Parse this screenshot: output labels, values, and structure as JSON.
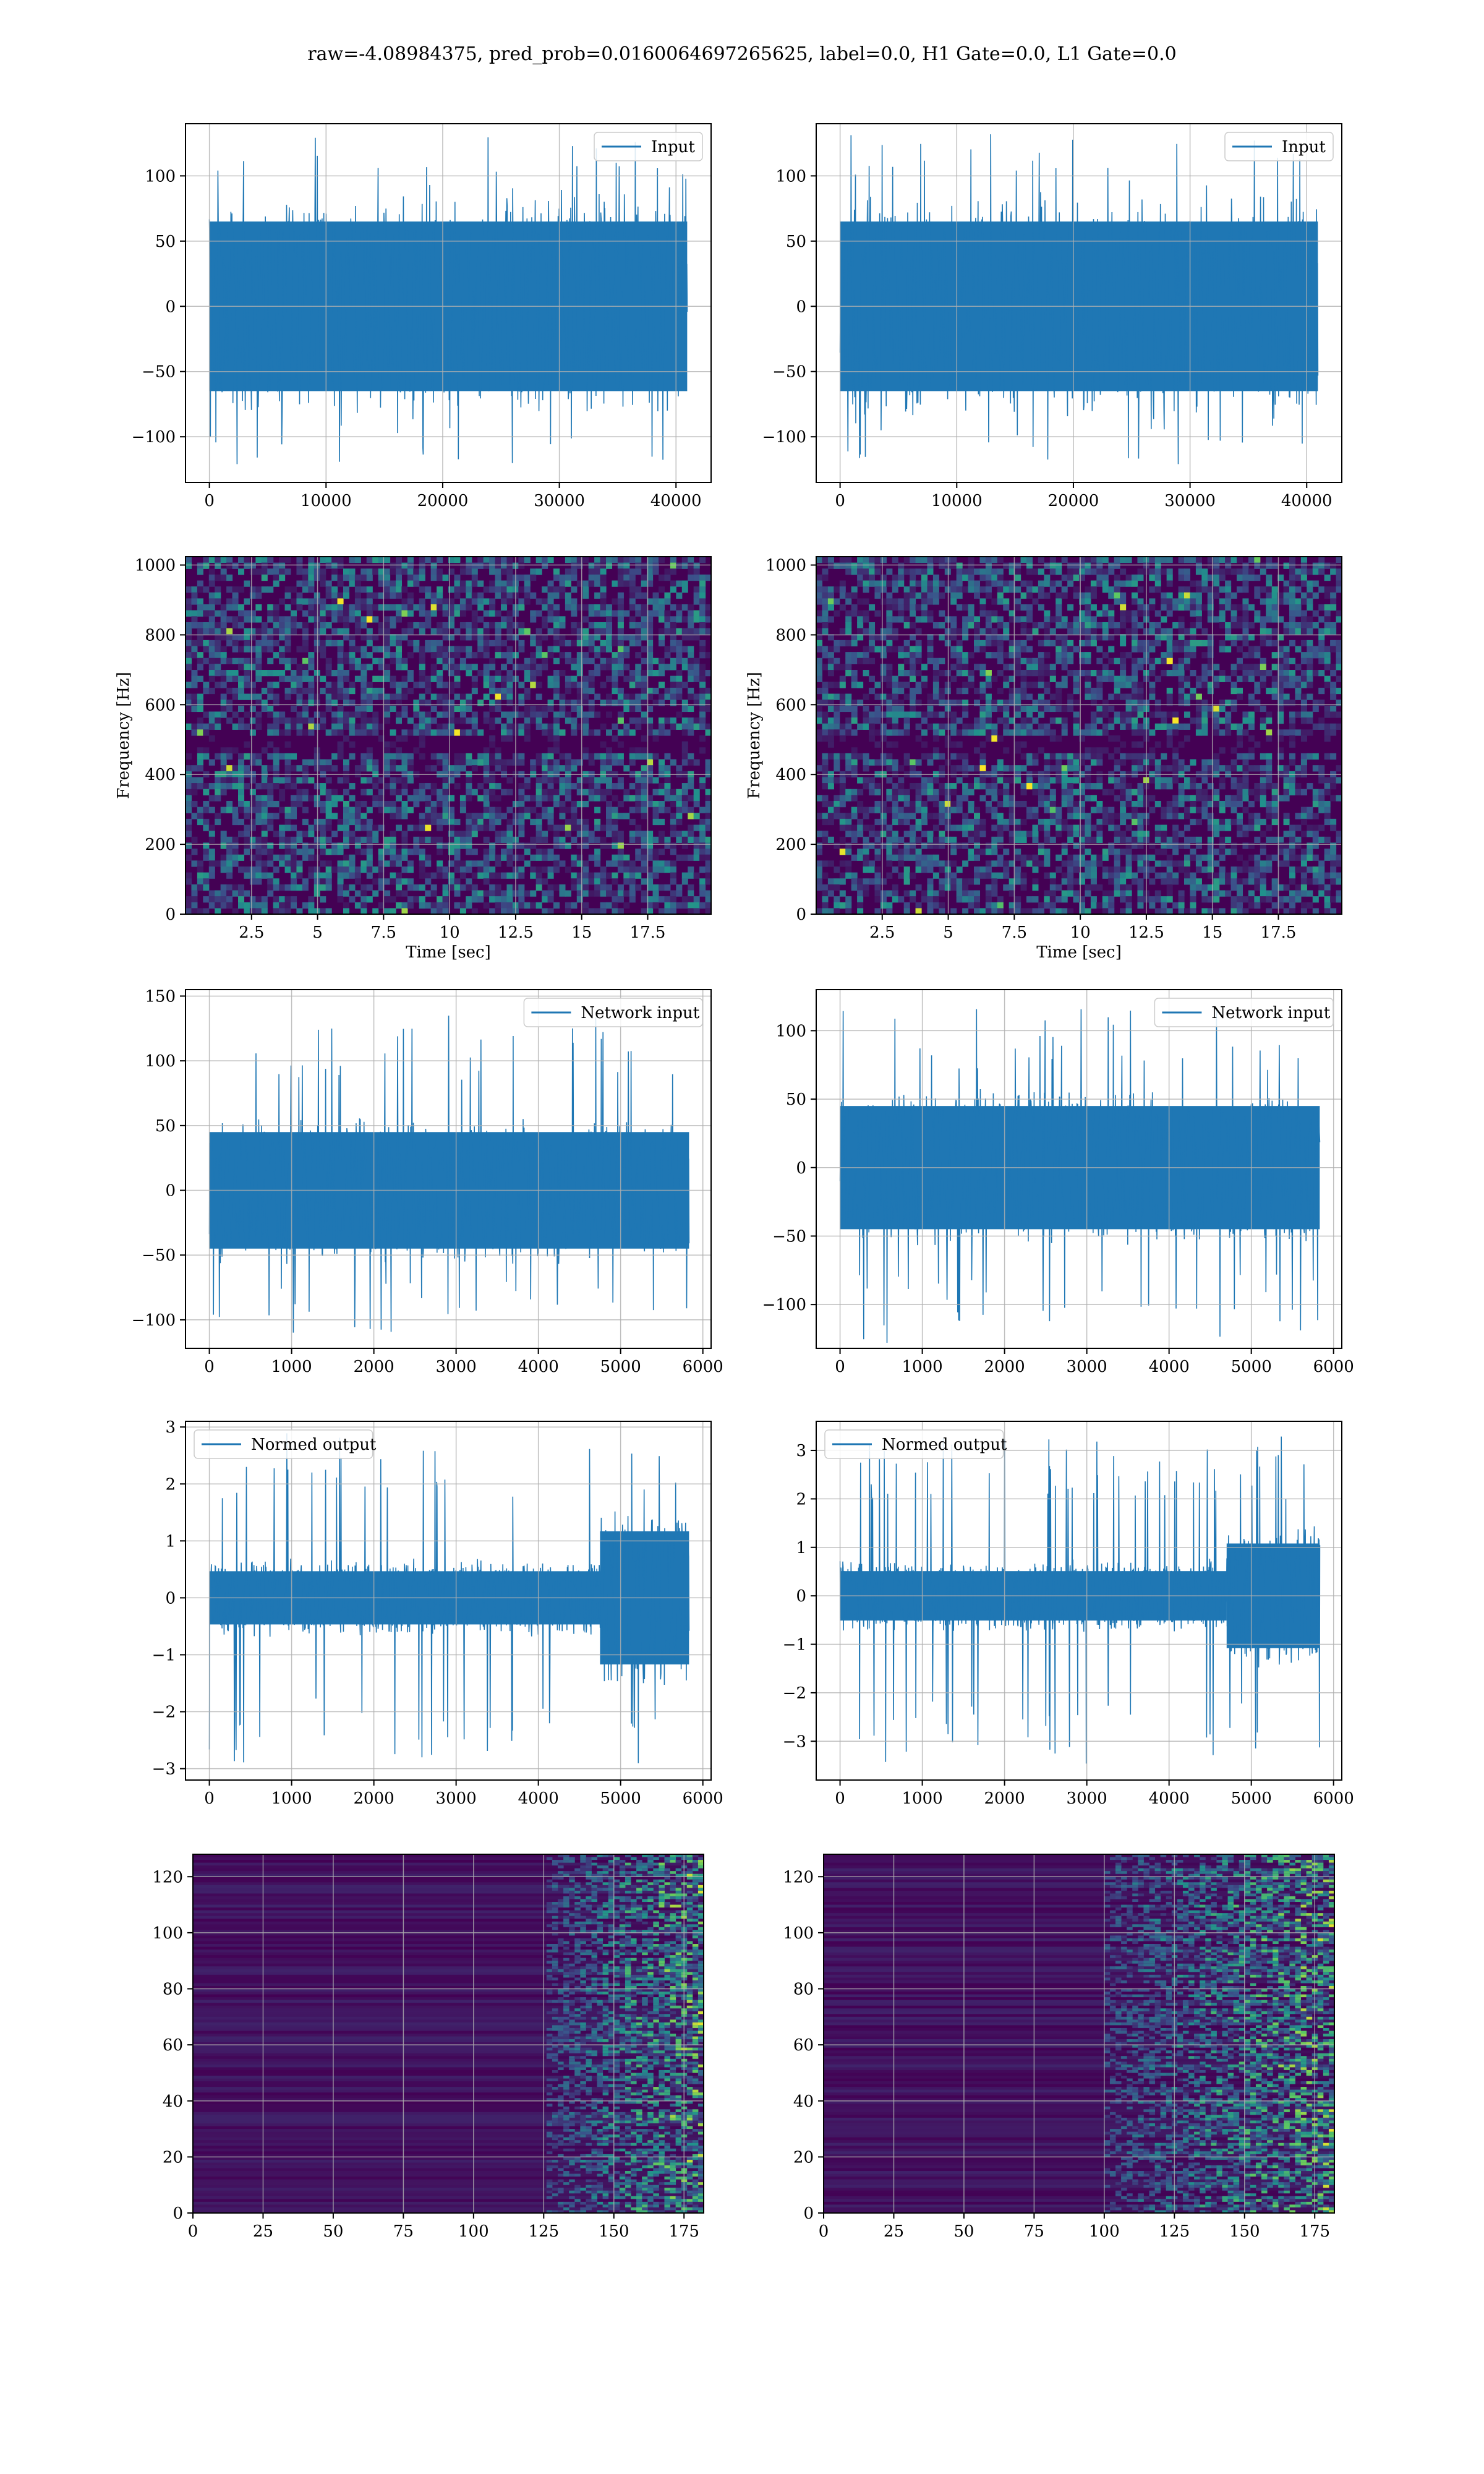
{
  "suptitle": "raw=-4.08984375, pred_prob=0.0160064697265625, label=0.0, H1 Gate=0.0, L1 Gate=0.0",
  "colors": {
    "line": "#1f77b4",
    "grid": "#b0b0b0",
    "viridis_low": "#440154",
    "viridis_high": "#fde725"
  },
  "chart_data": [
    {
      "type": "line",
      "row": 0,
      "col": 0,
      "legend": "Input",
      "legend_loc": "upper right",
      "xlim": [
        -2048,
        43008
      ],
      "ylim": [
        -135,
        140
      ],
      "xticks": [
        0,
        10000,
        20000,
        30000,
        40000
      ],
      "yticks": [
        -100,
        -50,
        0,
        50,
        100
      ],
      "n_samples": 40960,
      "envelope": {
        "core": 65,
        "peak_max": 130,
        "peak_min": -122
      },
      "grid": true
    },
    {
      "type": "line",
      "row": 0,
      "col": 1,
      "legend": "Input",
      "legend_loc": "upper right",
      "xlim": [
        -2048,
        43008
      ],
      "ylim": [
        -135,
        140
      ],
      "xticks": [
        0,
        10000,
        20000,
        30000,
        40000
      ],
      "yticks": [
        -100,
        -50,
        0,
        50,
        100
      ],
      "n_samples": 40960,
      "envelope": {
        "core": 65,
        "peak_max": 135,
        "peak_min": -122
      },
      "grid": true
    },
    {
      "type": "heatmap",
      "row": 1,
      "col": 0,
      "xlabel": "Time [sec]",
      "ylabel": "Frequency [Hz]",
      "xlim": [
        0,
        19.9
      ],
      "ylim": [
        0,
        1024
      ],
      "xticks": [
        2.5,
        5.0,
        7.5,
        10.0,
        12.5,
        15.0,
        17.5
      ],
      "yticks": [
        0,
        200,
        400,
        600,
        800,
        1000
      ],
      "colormap": "viridis",
      "content": "spectrogram noise",
      "grid": true
    },
    {
      "type": "heatmap",
      "row": 1,
      "col": 1,
      "xlabel": "Time [sec]",
      "ylabel": "Frequency [Hz]",
      "xlim": [
        0,
        19.9
      ],
      "ylim": [
        0,
        1024
      ],
      "xticks": [
        2.5,
        5.0,
        7.5,
        10.0,
        12.5,
        15.0,
        17.5
      ],
      "yticks": [
        0,
        200,
        400,
        600,
        800,
        1000
      ],
      "colormap": "viridis",
      "content": "spectrogram noise",
      "grid": true
    },
    {
      "type": "line",
      "row": 2,
      "col": 0,
      "legend": "Network input",
      "legend_loc": "upper right",
      "xlim": [
        -290,
        6100
      ],
      "ylim": [
        -122,
        155
      ],
      "xticks": [
        0,
        1000,
        2000,
        3000,
        4000,
        5000,
        6000
      ],
      "yticks": [
        -100,
        -50,
        0,
        50,
        100,
        150
      ],
      "n_samples": 5832,
      "envelope": {
        "core": 45,
        "peak_max": 140,
        "peak_min": -113
      },
      "grid": true
    },
    {
      "type": "line",
      "row": 2,
      "col": 1,
      "legend": "Network input",
      "legend_loc": "upper right",
      "xlim": [
        -290,
        6100
      ],
      "ylim": [
        -132,
        130
      ],
      "xticks": [
        0,
        1000,
        2000,
        3000,
        4000,
        5000,
        6000
      ],
      "yticks": [
        -100,
        -50,
        0,
        50,
        100
      ],
      "n_samples": 5832,
      "envelope": {
        "core": 45,
        "peak_max": 118,
        "peak_min": -128
      },
      "grid": true
    },
    {
      "type": "line",
      "row": 3,
      "col": 0,
      "legend": "Normed output",
      "legend_loc": "upper left",
      "xlim": [
        -290,
        6100
      ],
      "ylim": [
        -3.2,
        3.1
      ],
      "xticks": [
        0,
        1000,
        2000,
        3000,
        4000,
        5000,
        6000
      ],
      "yticks": [
        -3,
        -2,
        -1,
        0,
        1,
        2,
        3
      ],
      "n_samples": 5832,
      "envelope": {
        "core": 0.55,
        "burst_start": 4750,
        "burst_core": 1.3,
        "peak_max": 2.9,
        "peak_min": -2.95
      },
      "grid": true
    },
    {
      "type": "line",
      "row": 3,
      "col": 1,
      "legend": "Normed output",
      "legend_loc": "upper left",
      "xlim": [
        -290,
        6100
      ],
      "ylim": [
        -3.8,
        3.6
      ],
      "xticks": [
        0,
        1000,
        2000,
        3000,
        4000,
        5000,
        6000
      ],
      "yticks": [
        -3,
        -2,
        -1,
        0,
        1,
        2,
        3
      ],
      "n_samples": 5832,
      "envelope": {
        "core": 0.6,
        "burst_start": 4700,
        "burst_core": 1.2,
        "peak_max": 3.3,
        "peak_min": -3.5
      },
      "grid": true
    },
    {
      "type": "heatmap",
      "row": 4,
      "col": 0,
      "xlim": [
        0,
        182
      ],
      "ylim": [
        128,
        0
      ],
      "xticks": [
        0,
        25,
        50,
        75,
        100,
        125,
        150,
        175
      ],
      "yticks": [
        0,
        20,
        40,
        60,
        80,
        100,
        120
      ],
      "colormap": "viridis",
      "content": "feature map, activity increasing to the right",
      "active_from": 125,
      "grid": true
    },
    {
      "type": "heatmap",
      "row": 4,
      "col": 1,
      "xlim": [
        0,
        182
      ],
      "ylim": [
        128,
        0
      ],
      "xticks": [
        0,
        25,
        50,
        75,
        100,
        125,
        150,
        175
      ],
      "yticks": [
        0,
        20,
        40,
        60,
        80,
        100,
        120
      ],
      "colormap": "viridis",
      "content": "feature map, activity increasing to the right",
      "active_from": 100,
      "grid": true
    }
  ]
}
